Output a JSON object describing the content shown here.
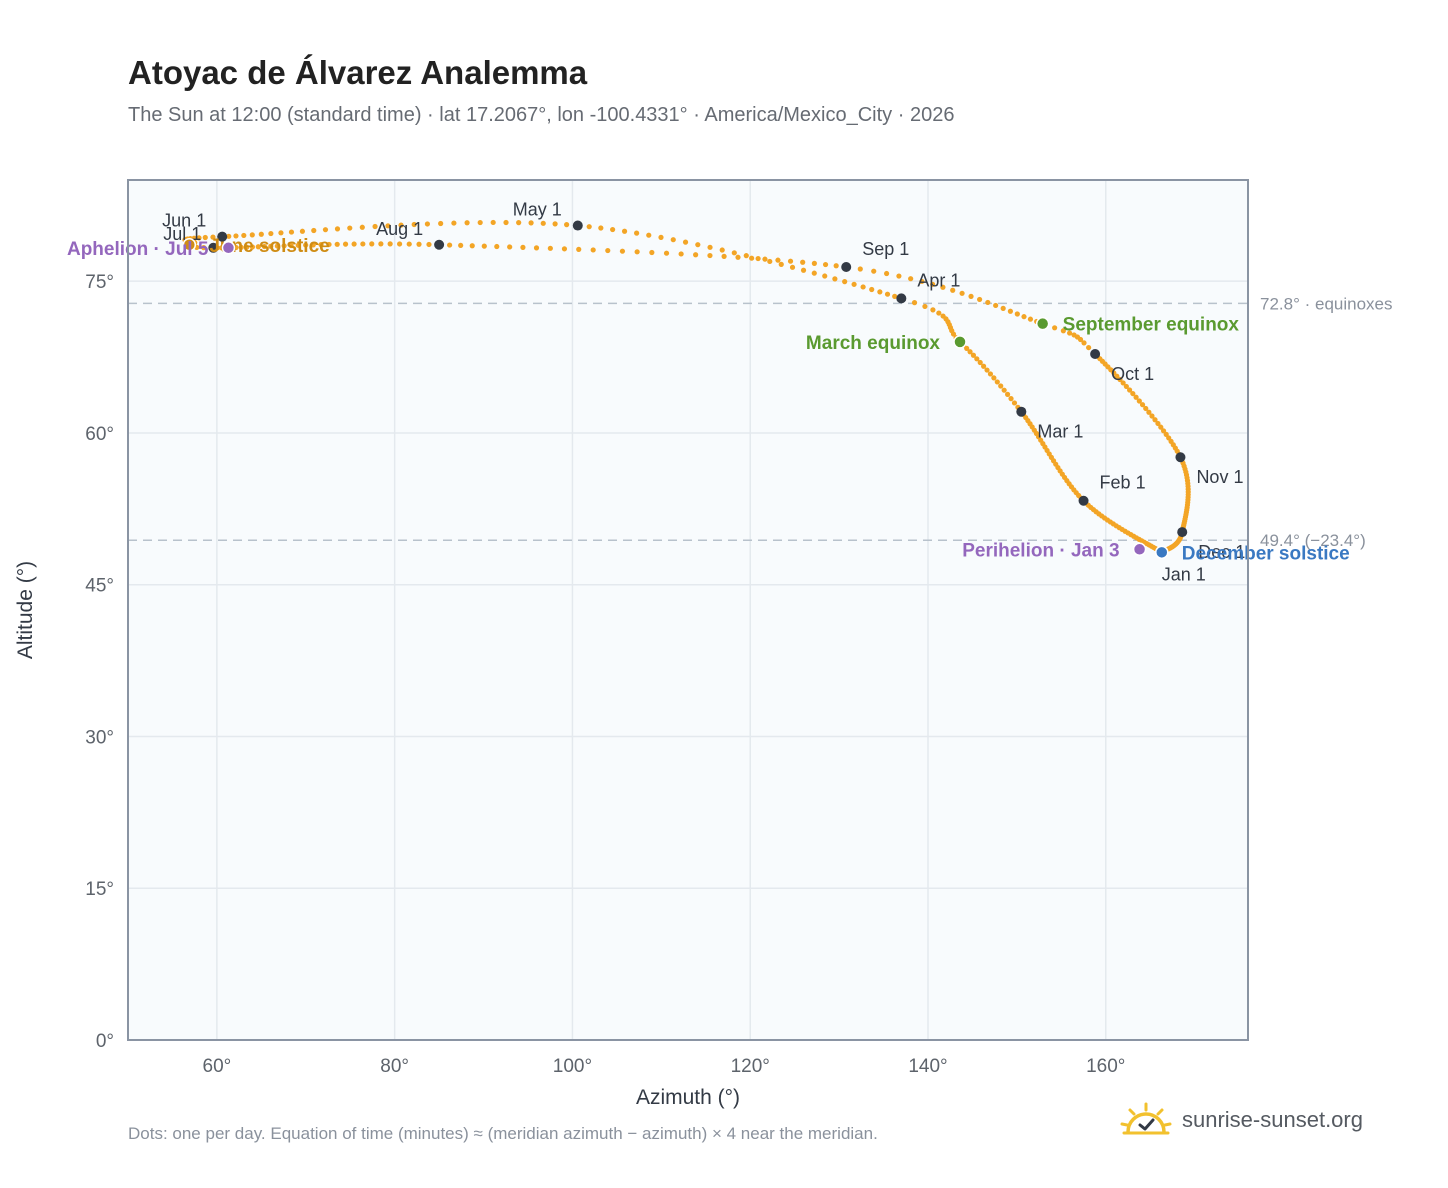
{
  "title": "Atoyac de Álvarez Analemma",
  "subtitle": "The Sun at 12:00 (standard time) · lat 17.2067°, lon -100.4331° · America/Mexico_City · 2026",
  "footnote": "Dots: one per day. Equation of time (minutes) ≈ (meridian azimuth − azimuth) × 4 near the meridian.",
  "brand": {
    "text": "sunrise-sunset.org",
    "icon": "sun-check-icon"
  },
  "colors": {
    "curve": "#f3a526",
    "month_marker": "#333a45",
    "equinox": "#5a9a30",
    "solstice_june": "#cf8c14",
    "solstice_december": "#3a79c2",
    "apsis": "#9467bd",
    "plot_bg": "#f8fbfd",
    "grid": "#e4e9ee",
    "frame": "#8a94a3",
    "reference_line": "#b8c2cc"
  },
  "chart_data": {
    "type": "scatter",
    "xlabel": "Azimuth (°)",
    "ylabel": "Altitude (°)",
    "xlim": [
      50,
      176
    ],
    "ylim": [
      0,
      85
    ],
    "x_ticks": [
      60,
      80,
      100,
      120,
      140,
      160
    ],
    "y_ticks": [
      0,
      15,
      30,
      45,
      60,
      75
    ],
    "x_tick_labels": [
      "60°",
      "80°",
      "100°",
      "120°",
      "140°",
      "160°"
    ],
    "y_tick_labels": [
      "0°",
      "15°",
      "30°",
      "45°",
      "60°",
      "75°"
    ],
    "grid": true,
    "reference_lines": [
      {
        "altitude": 72.8,
        "label": "72.8° · equinoxes"
      },
      {
        "altitude": 49.4,
        "label": "49.4° (−23.4°)"
      }
    ],
    "series": [
      {
        "name": "",
        "points_per": "day",
        "anchors": [
          {
            "day": 1,
            "x": 166.3,
            "y": 48.2
          },
          {
            "day": 32,
            "x": 157.5,
            "y": 53.3
          },
          {
            "day": 60,
            "x": 150.5,
            "y": 62.1
          },
          {
            "day": 78,
            "x": 143.6,
            "y": 69.0
          },
          {
            "day": 91,
            "x": 137.0,
            "y": 73.3
          },
          {
            "day": 121,
            "x": 100.6,
            "y": 80.5
          },
          {
            "day": 152,
            "x": 60.6,
            "y": 79.4
          },
          {
            "day": 171,
            "x": 57.5,
            "y": 78.8
          },
          {
            "day": 182,
            "x": 59.6,
            "y": 78.3
          },
          {
            "day": 213,
            "x": 85.0,
            "y": 78.6
          },
          {
            "day": 244,
            "x": 130.8,
            "y": 76.4
          },
          {
            "day": 265,
            "x": 152.9,
            "y": 70.8
          },
          {
            "day": 274,
            "x": 158.8,
            "y": 67.8
          },
          {
            "day": 305,
            "x": 168.4,
            "y": 57.6
          },
          {
            "day": 335,
            "x": 168.6,
            "y": 50.2
          },
          {
            "day": 355,
            "x": 166.3,
            "y": 48.2
          },
          {
            "day": 365,
            "x": 166.3,
            "y": 48.2
          }
        ]
      }
    ],
    "month_markers": [
      {
        "label": "Jan 1",
        "x": 166.3,
        "y": 48.2,
        "label_pos": "below-right"
      },
      {
        "label": "Feb 1",
        "x": 157.5,
        "y": 53.3,
        "label_pos": "right-up"
      },
      {
        "label": "Mar 1",
        "x": 150.5,
        "y": 62.1,
        "label_pos": "right-down"
      },
      {
        "label": "Apr 1",
        "x": 137.0,
        "y": 73.3,
        "label_pos": "right-up"
      },
      {
        "label": "May 1",
        "x": 100.6,
        "y": 80.5,
        "label_pos": "above-left"
      },
      {
        "label": "Jun 1",
        "x": 60.6,
        "y": 79.4,
        "label_pos": "above-left"
      },
      {
        "label": "Jul 1",
        "x": 59.6,
        "y": 78.3,
        "label_pos": "left-up"
      },
      {
        "label": "Aug 1",
        "x": 85.0,
        "y": 78.6,
        "label_pos": "above-left"
      },
      {
        "label": "Sep 1",
        "x": 130.8,
        "y": 76.4,
        "label_pos": "right-up"
      },
      {
        "label": "Oct 1",
        "x": 158.8,
        "y": 67.8,
        "label_pos": "right-down"
      },
      {
        "label": "Nov 1",
        "x": 168.4,
        "y": 57.6,
        "label_pos": "right-down"
      },
      {
        "label": "Dec 1",
        "x": 168.6,
        "y": 50.2,
        "label_pos": "right-down"
      }
    ],
    "special_points": [
      {
        "label": "March equinox",
        "x": 143.6,
        "y": 69.0,
        "color_key": "equinox",
        "label_pos": "left"
      },
      {
        "label": "September equinox",
        "x": 152.9,
        "y": 70.8,
        "color_key": "equinox",
        "label_pos": "right"
      },
      {
        "label": "June solstice",
        "x": 56.9,
        "y": 78.6,
        "color_key": "solstice_june",
        "label_pos": "right"
      },
      {
        "label": "December solstice",
        "x": 166.3,
        "y": 48.2,
        "color_key": "solstice_december",
        "label_pos": "right"
      },
      {
        "label": "Aphelion · Jul 5",
        "x": 61.3,
        "y": 78.3,
        "color_key": "apsis",
        "label_pos": "left"
      },
      {
        "label": "Perihelion · Jan 3",
        "x": 163.8,
        "y": 48.5,
        "color_key": "apsis",
        "label_pos": "left"
      }
    ]
  }
}
